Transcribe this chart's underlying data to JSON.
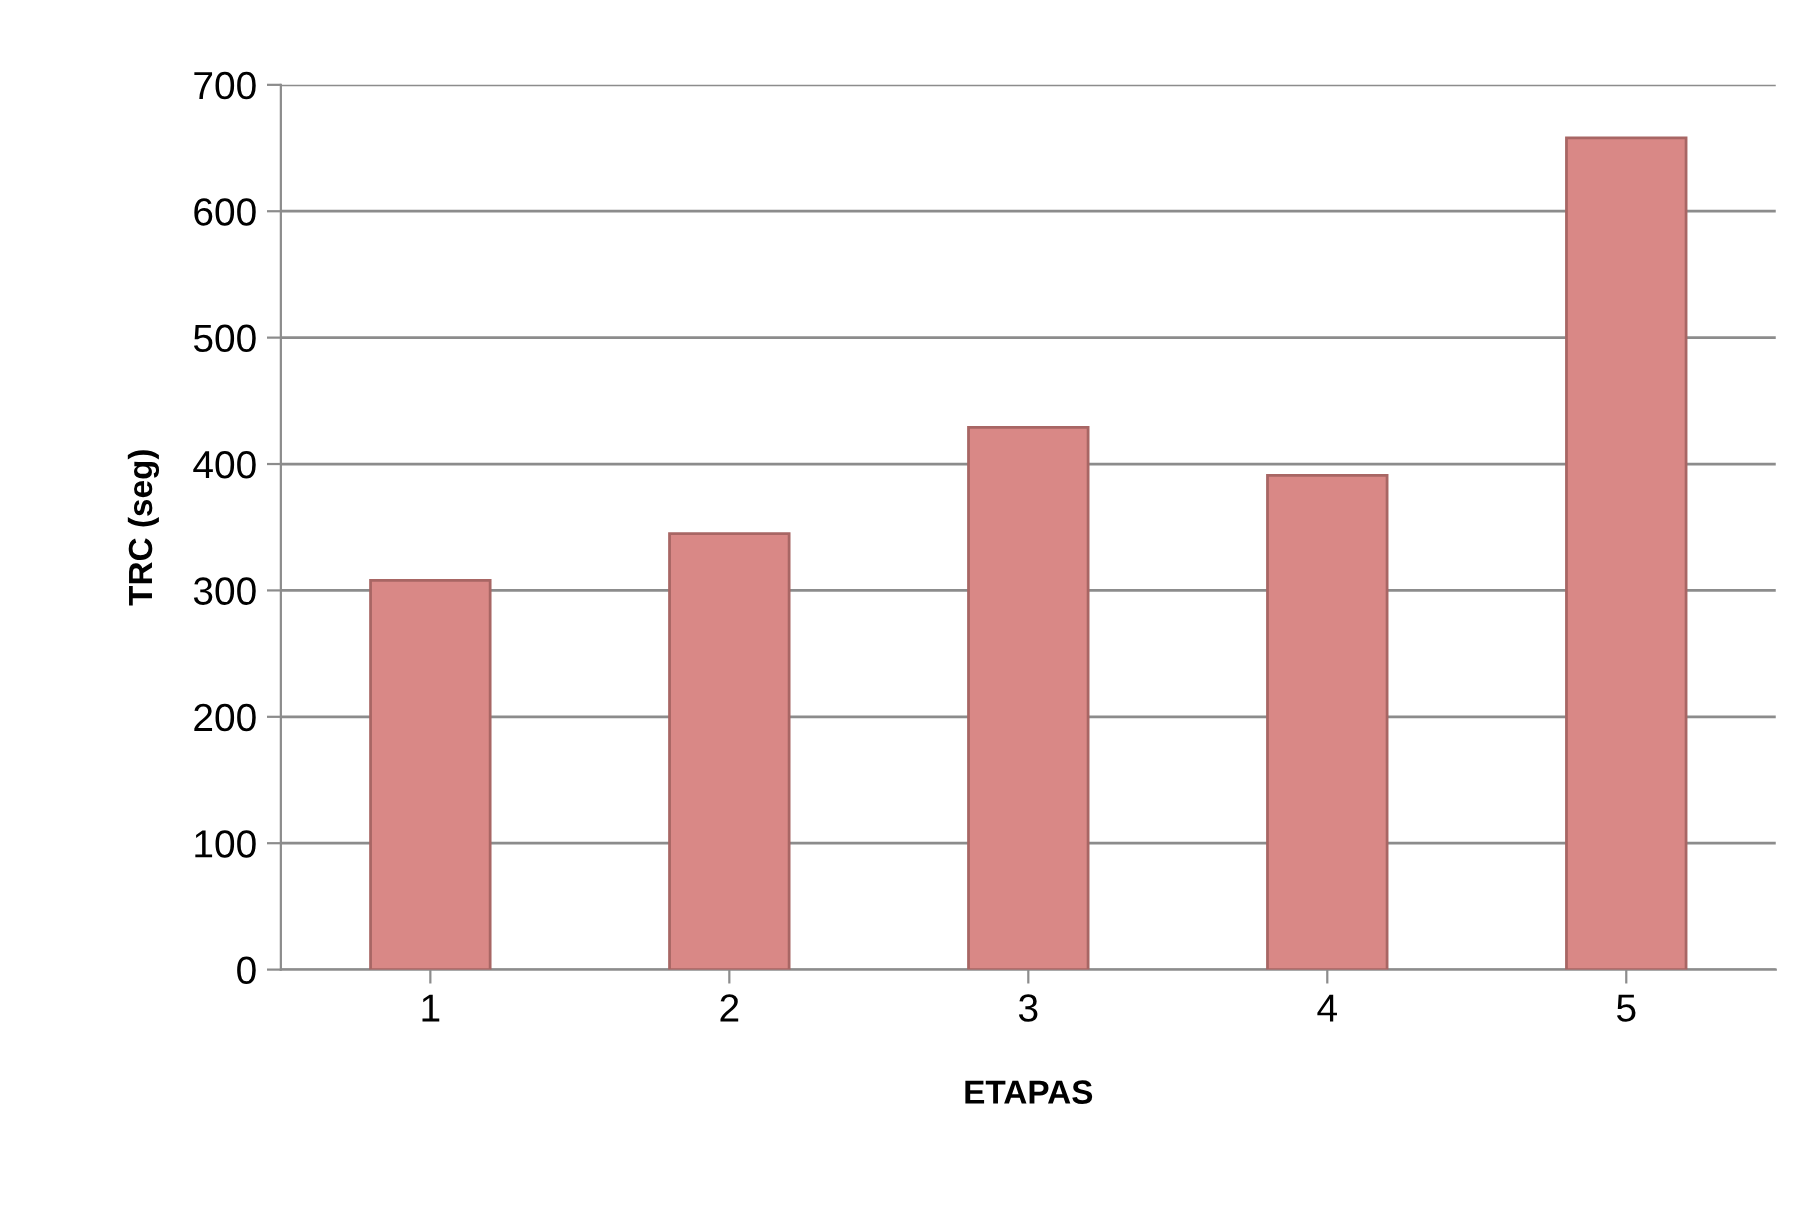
{
  "chart_data": {
    "type": "bar",
    "xlabel": "ETAPAS",
    "ylabel": "TRC (seg)",
    "categories": [
      "1",
      "2",
      "3",
      "4",
      "5"
    ],
    "values": [
      308,
      345,
      429,
      391,
      658
    ],
    "color": "#d98886",
    "ylim": [
      0,
      700
    ],
    "yticks": [
      0,
      100,
      200,
      300,
      400,
      500,
      600,
      700
    ],
    "grid": "y",
    "legend": false
  }
}
